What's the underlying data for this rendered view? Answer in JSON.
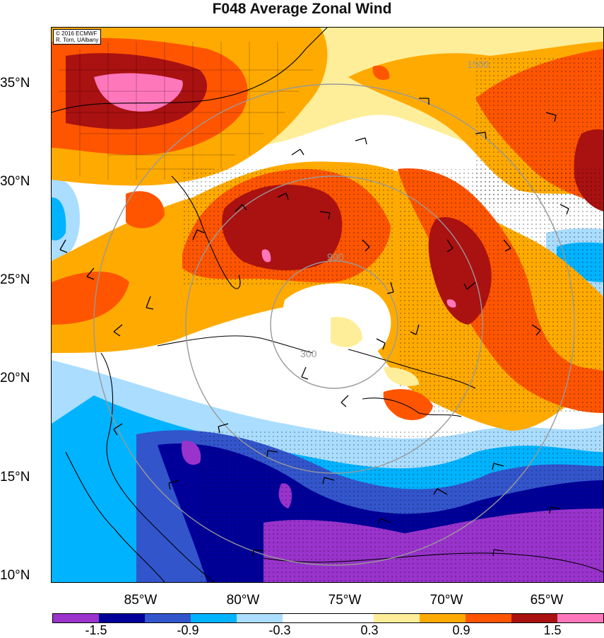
{
  "title": "F048 Average Zonal Wind",
  "credit": {
    "line1": "© 2016 ECMWF",
    "line2": "R. Torn, UAlbany"
  },
  "lat_labels": [
    "35°N",
    "30°N",
    "25°N",
    "20°N",
    "15°N",
    "10°N"
  ],
  "lon_labels": [
    "85°W",
    "80°W",
    "75°W",
    "70°W",
    "65°W"
  ],
  "range_ring_labels": [
    "300",
    "900",
    "1500"
  ],
  "colorbar": {
    "colors": [
      "#9933cc",
      "#000099",
      "#3355cc",
      "#00b3ff",
      "#aaddff",
      "#ffffff",
      "#ffffff",
      "#ffee99",
      "#ffaa00",
      "#ff5500",
      "#aa1111",
      "#ff77bb"
    ],
    "labels": [
      "-1.5",
      "-0.9",
      "-0.3",
      "0.3",
      "0.9",
      "1.5"
    ]
  },
  "colors": {
    "background": "#ffffff",
    "ring": "#999999",
    "land_outline": "#000000"
  }
}
